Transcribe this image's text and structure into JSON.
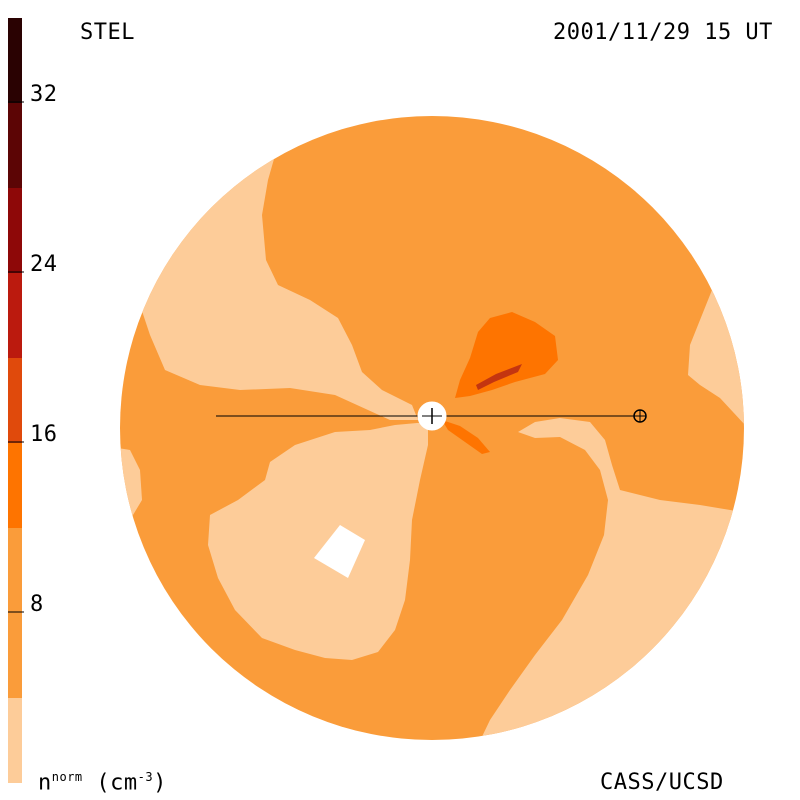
{
  "header": {
    "instrument": "STEL",
    "datetime": "2001/11/29 15 UT"
  },
  "footer": {
    "quantity": "n",
    "quantity_superscript": "norm",
    "unit_open": "(cm",
    "unit_superscript": "-3",
    "unit_close": ")",
    "credit": "CASS/UCSD"
  },
  "colorbar": {
    "ticks": [
      "32",
      "24",
      "16",
      "8"
    ],
    "levels": [
      {
        "range": [
          0,
          4
        ],
        "color": "#fdcc99"
      },
      {
        "range": [
          4,
          12
        ],
        "color": "#fa9c3a"
      },
      {
        "range": [
          12,
          16
        ],
        "color": "#fe7400"
      },
      {
        "range": [
          16,
          20
        ],
        "color": "#e04a0c"
      },
      {
        "range": [
          20,
          24
        ],
        "color": "#bb1a0e"
      },
      {
        "range": [
          24,
          28
        ],
        "color": "#8e0808"
      },
      {
        "range": [
          28,
          32
        ],
        "color": "#5c0505"
      },
      {
        "range": [
          32,
          36
        ],
        "color": "#2a0202"
      }
    ]
  },
  "map": {
    "background_color": "#fa9c3a",
    "low_color": "#fdcc99",
    "mid_color": "#fe7400",
    "high_color": "#c43510",
    "markers": [
      "sun-marker",
      "earth-marker"
    ]
  }
}
